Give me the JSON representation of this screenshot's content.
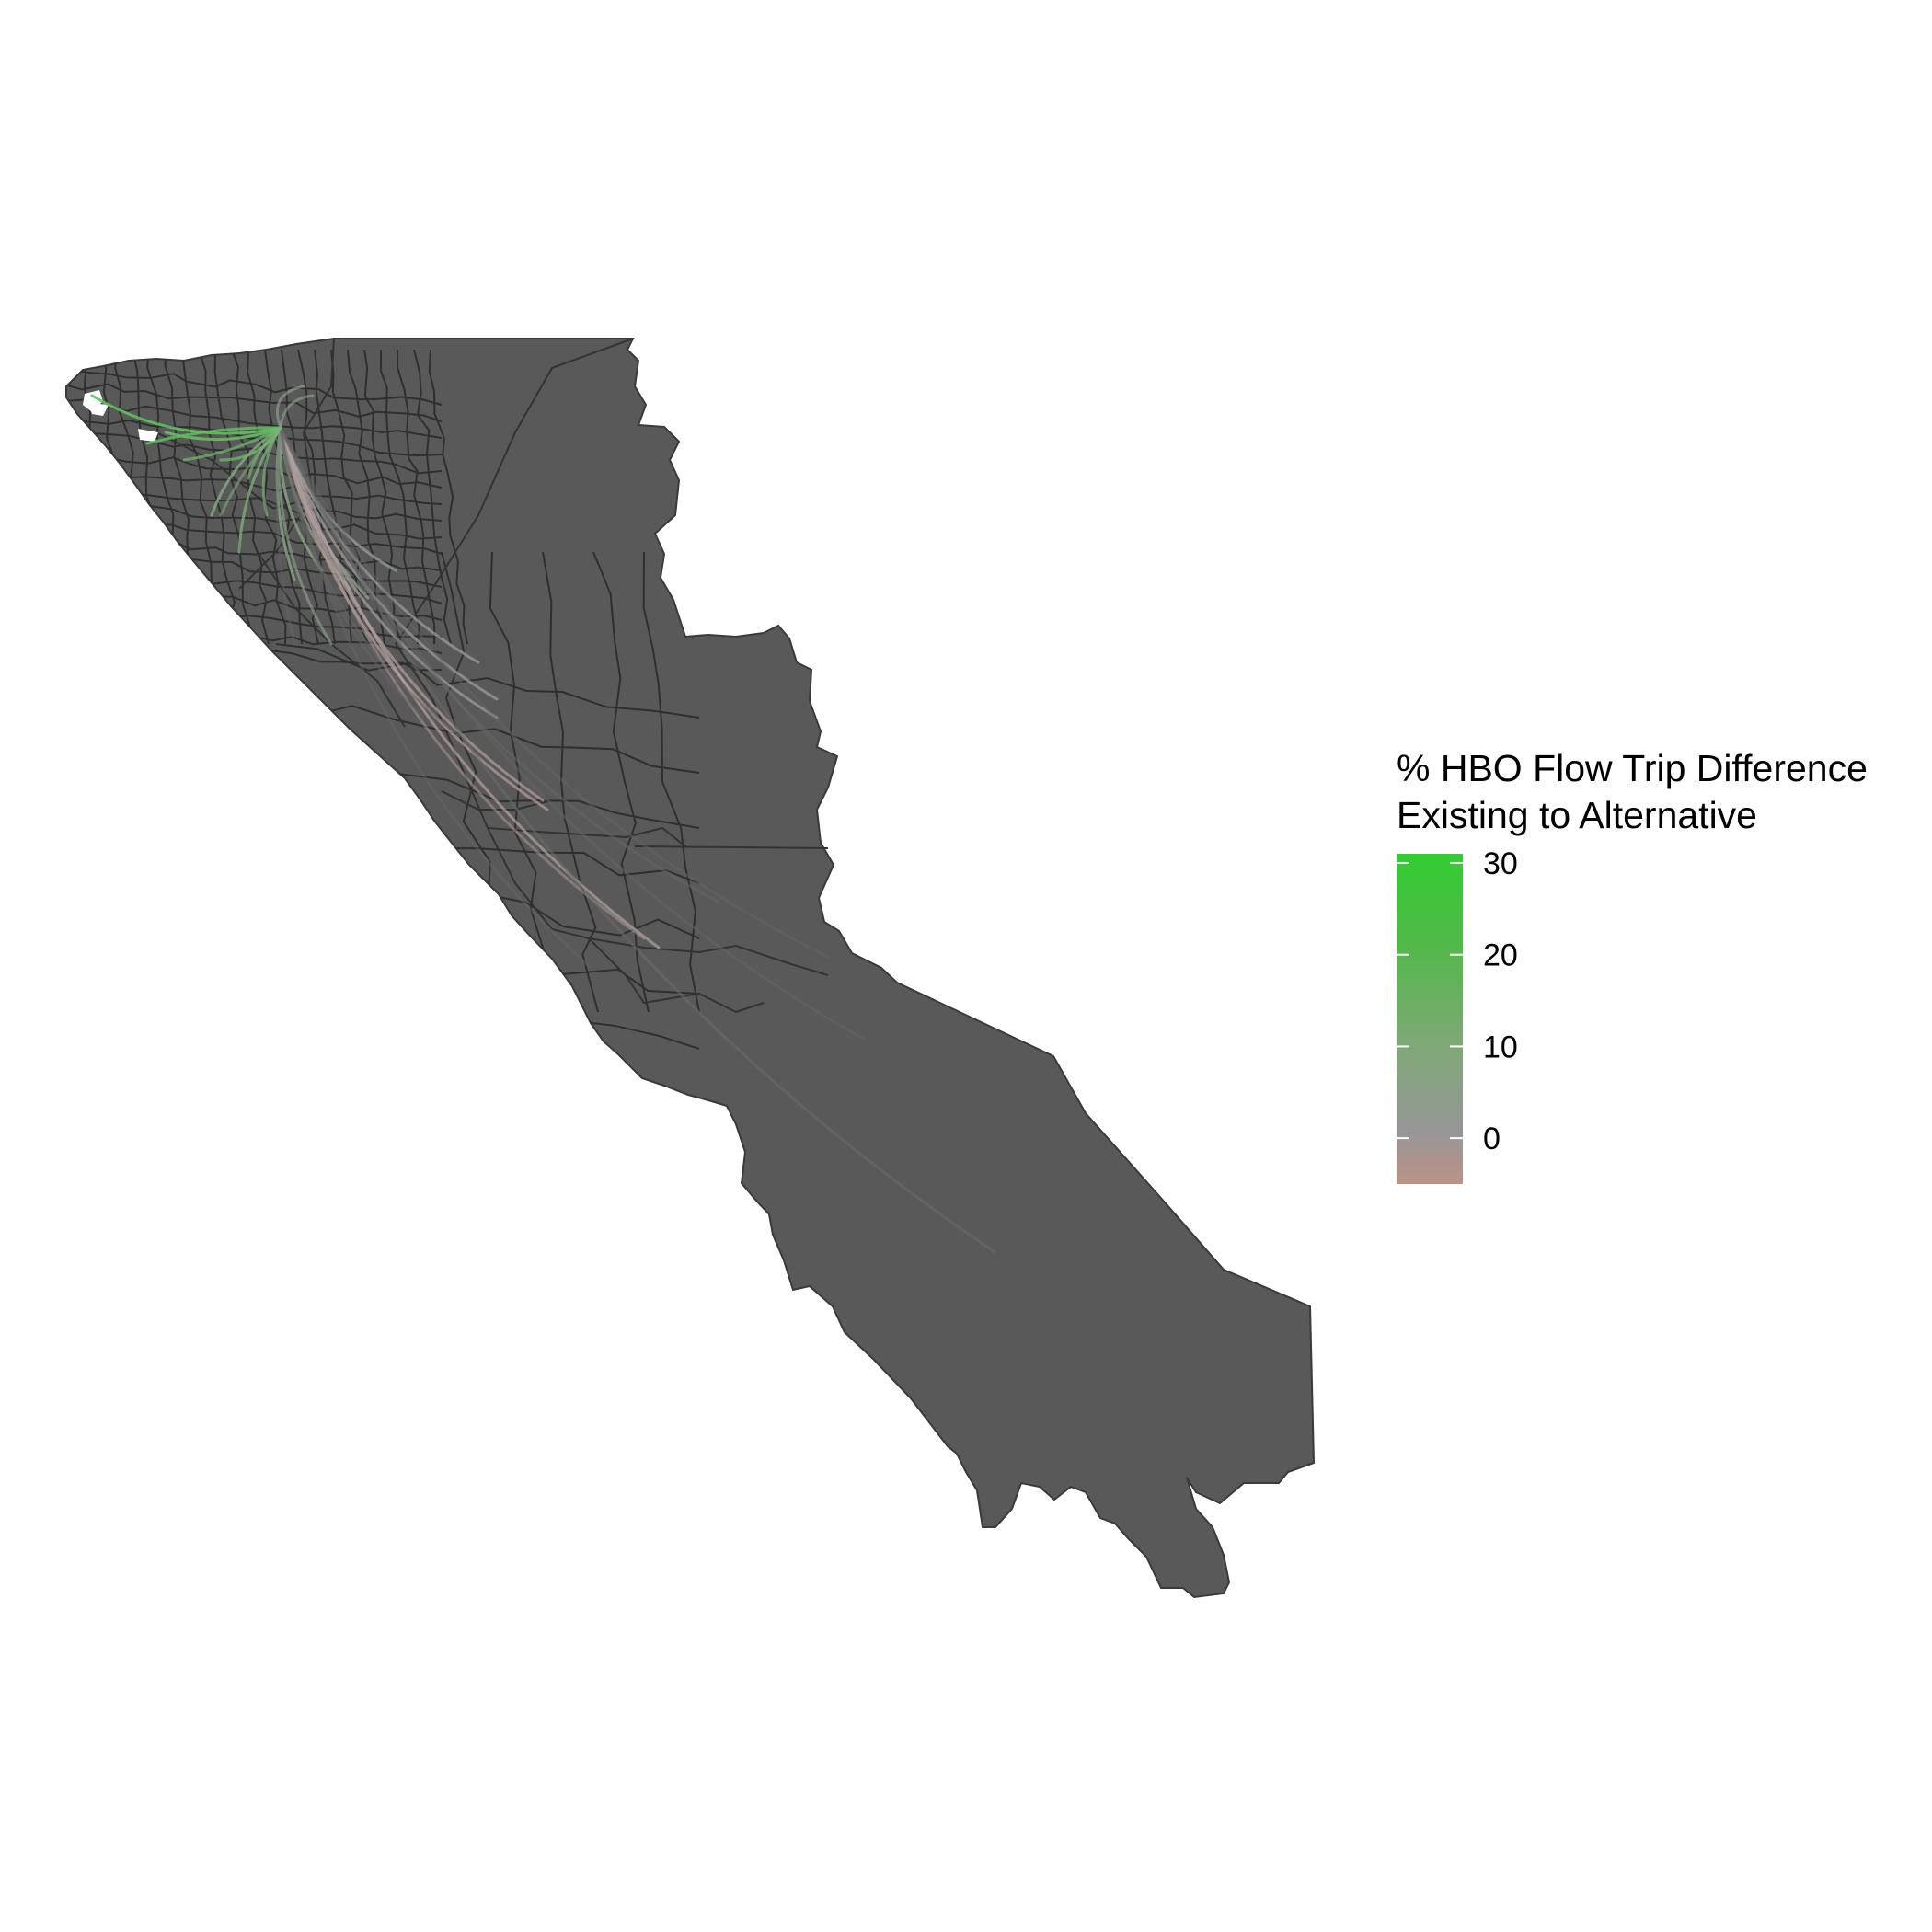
{
  "legend": {
    "title_line1": "% HBO Flow Trip Difference",
    "title_line2": "Existing to Alternative",
    "ticks": [
      {
        "value": 30,
        "label": "30"
      },
      {
        "value": 20,
        "label": "20"
      },
      {
        "value": 10,
        "label": "10"
      },
      {
        "value": 0,
        "label": "0"
      }
    ],
    "range": [
      -5,
      31
    ],
    "colors": {
      "high": "#32CD32",
      "mid": "#969696",
      "low": "#BC9386"
    }
  },
  "map": {
    "background": "#ffffff",
    "region_fill": "#595959",
    "boundary_color": "#3a3a3a"
  }
}
